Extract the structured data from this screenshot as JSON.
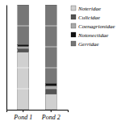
{
  "chart_data": {
    "type": "bar",
    "stacked": true,
    "categories": [
      "Pond 1",
      "Pond 2"
    ],
    "series": [
      {
        "name": "Noteridae",
        "color": "#d0d0d0",
        "values": [
          55,
          15
        ]
      },
      {
        "name": "Culicidae",
        "color": "#555555",
        "values": [
          3,
          5
        ]
      },
      {
        "name": "Coenagrionidae",
        "color": "#aaaaaa",
        "values": [
          2,
          3
        ]
      },
      {
        "name": "Notonectidae",
        "color": "#111111",
        "values": [
          2,
          2
        ]
      },
      {
        "name": "Gerridae",
        "color": "#777777",
        "values": [
          38,
          75
        ]
      }
    ],
    "ylim": [
      0,
      100
    ],
    "yticks": [
      20,
      40,
      60,
      80
    ],
    "grid": true,
    "legend": "right",
    "tick_labels": "x"
  }
}
